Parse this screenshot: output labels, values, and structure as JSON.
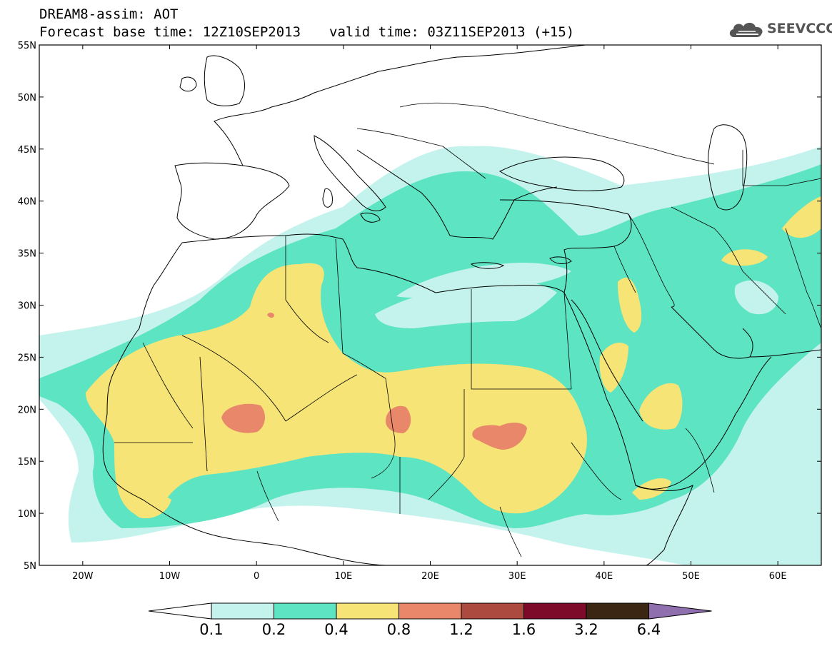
{
  "header": {
    "title_line1": "DREAM8-assim: AOT",
    "base_time_label": "Forecast base time: 12Z10SEP2013",
    "valid_time_label": "valid time: 03Z11SEP2013 (+15)"
  },
  "logo": {
    "text": "SEEVCCC",
    "icon": "cloud-icon",
    "color": "#555555"
  },
  "map": {
    "projection": "lat-lon",
    "lon_range": [
      -25,
      65
    ],
    "lat_range": [
      5,
      55
    ],
    "lat_ticks": [
      "55N",
      "50N",
      "45N",
      "40N",
      "35N",
      "30N",
      "25N",
      "20N",
      "15N",
      "10N",
      "5N"
    ],
    "lon_ticks": [
      "20W",
      "10W",
      "0",
      "10E",
      "20E",
      "30E",
      "40E",
      "50E",
      "60E"
    ],
    "ocean_color": "#ffffff",
    "coastline_color": "#000000"
  },
  "legend": {
    "levels": [
      "0.1",
      "0.2",
      "0.4",
      "0.8",
      "1.2",
      "1.6",
      "3.2",
      "6.4"
    ],
    "colors": [
      "#c4f2ec",
      "#5de4c2",
      "#f6e476",
      "#e8876a",
      "#ad4a40",
      "#7c0a28",
      "#3a2612",
      "#8f6fae"
    ],
    "below_color": "#ffffff"
  }
}
